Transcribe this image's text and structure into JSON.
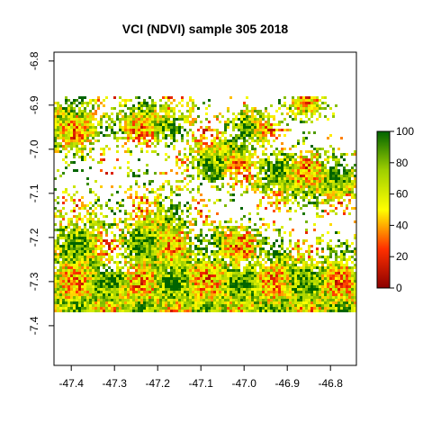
{
  "chart_data": {
    "type": "heatmap",
    "title": "VCI (NDVI) sample 305 2018",
    "xlabel": "",
    "ylabel": "",
    "xlim": [
      -47.44,
      -46.74
    ],
    "ylim": [
      -7.49,
      -6.78
    ],
    "x_ticks": [
      -47.4,
      -47.3,
      -47.2,
      -47.1,
      -47.0,
      -46.9,
      -46.8
    ],
    "x_tick_labels": [
      "-47.4",
      "-47.3",
      "-47.2",
      "-47.1",
      "-47.0",
      "-46.9",
      "-46.8"
    ],
    "y_ticks": [
      -6.8,
      -6.9,
      -7.0,
      -7.1,
      -7.2,
      -7.3,
      -7.4
    ],
    "y_tick_labels": [
      "-6.8",
      "-6.9",
      "-7.0",
      "-7.1",
      "-7.2",
      "-7.3",
      "-7.4"
    ],
    "data_extent": {
      "lon": [
        -47.44,
        -46.74
      ],
      "lat": [
        -7.37,
        -6.88
      ]
    },
    "value_range": [
      0,
      100
    ],
    "colorbar": {
      "ticks": [
        0,
        20,
        40,
        60,
        80,
        100
      ],
      "tick_labels": [
        "0",
        "20",
        "40",
        "60",
        "80",
        "100"
      ],
      "colors": [
        "#8b0000",
        "#ff3000",
        "#ffff00",
        "#a0d000",
        "#006400"
      ]
    },
    "grid": false,
    "legend": "right"
  }
}
